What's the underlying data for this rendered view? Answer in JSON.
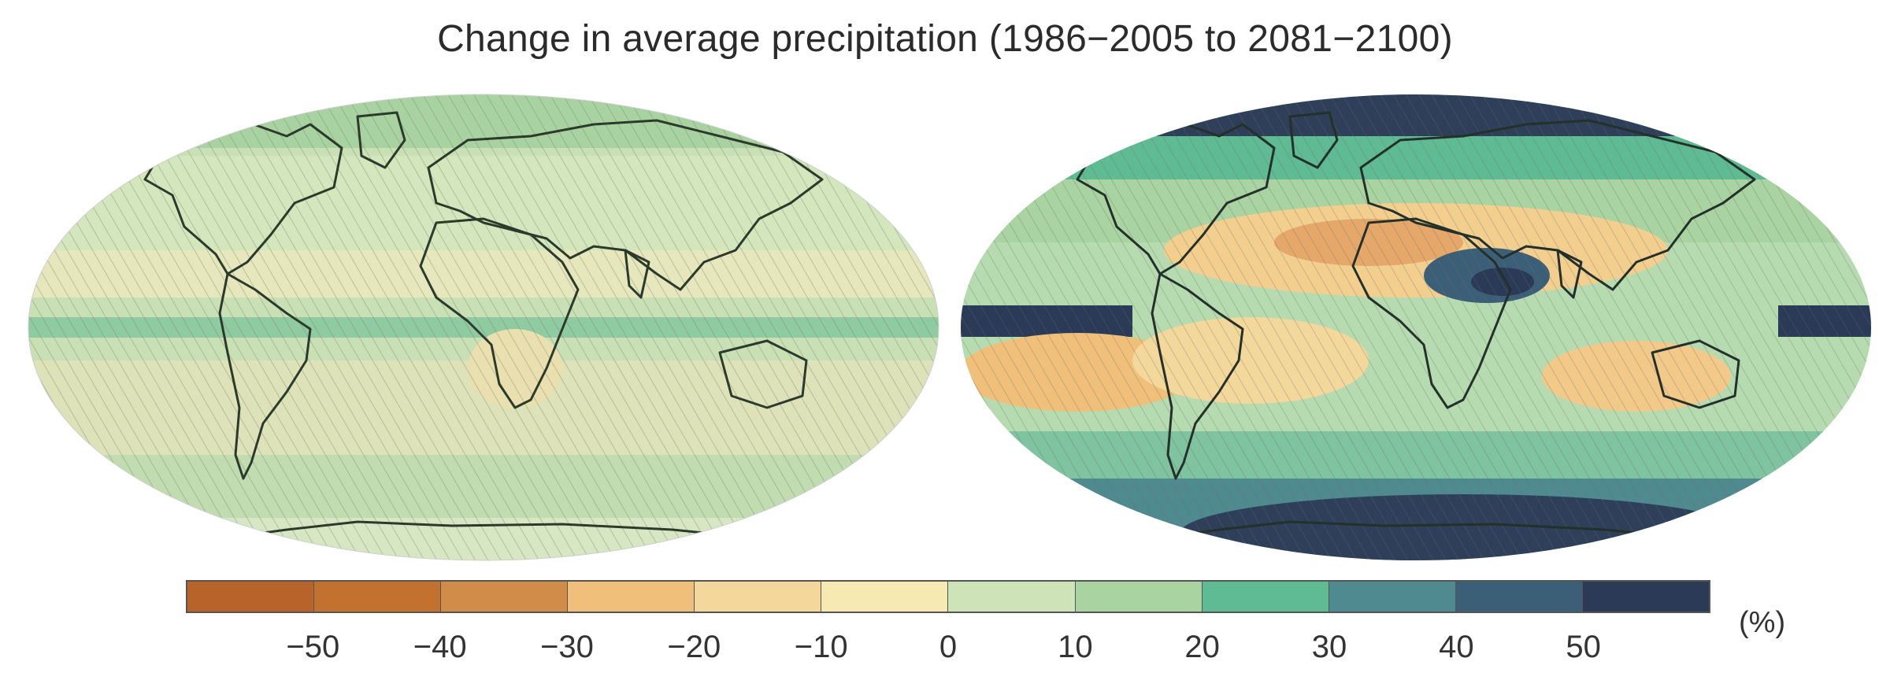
{
  "title": "Change in average precipitation (1986−2005 to 2081−2100)",
  "colorbar": {
    "unit_label": "(%)",
    "tick_labels": [
      "−50",
      "−40",
      "−30",
      "−20",
      "−10",
      "0",
      "10",
      "20",
      "30",
      "40",
      "50"
    ],
    "colors": [
      "#b7632a",
      "#c2712f",
      "#d08c48",
      "#f0c07a",
      "#f4d79a",
      "#f6eab2",
      "#cfe3b9",
      "#a9d3a0",
      "#5fbb93",
      "#4f8a90",
      "#3c5f78",
      "#2a3a57"
    ]
  },
  "maps": [
    {
      "name": "left",
      "dominant_color": "#c3dfb0"
    },
    {
      "name": "right",
      "dominant_color": "#a9d3a0"
    }
  ]
}
